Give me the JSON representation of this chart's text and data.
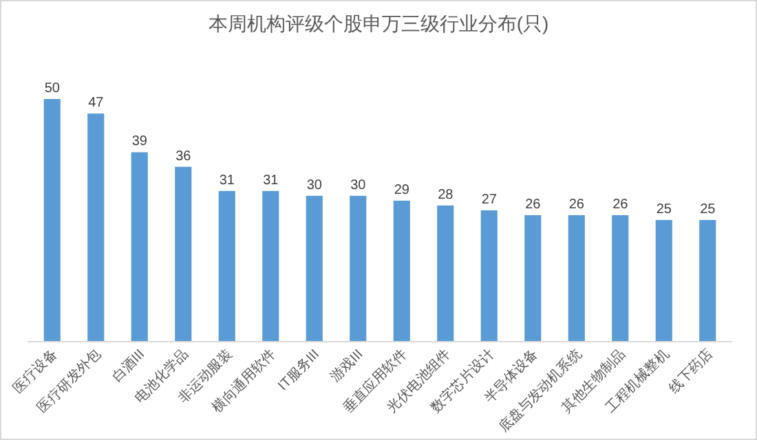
{
  "chart_data": {
    "type": "bar",
    "title": "本周机构评级个股申万三级行业分布(只)",
    "categories": [
      "医疗设备",
      "医疗研发外包",
      "白酒III",
      "电池化学品",
      "非运动服装",
      "横向通用软件",
      "IT服务III",
      "游戏III",
      "垂直应用软件",
      "光伏电池组件",
      "数字芯片设计",
      "半导体设备",
      "底盘与发动机系统",
      "其他生物制品",
      "工程机械整机",
      "线下药店"
    ],
    "values": [
      50,
      47,
      39,
      36,
      31,
      31,
      30,
      30,
      29,
      28,
      27,
      26,
      26,
      26,
      25,
      25
    ],
    "color": "#5b9bd5",
    "data_labels": true
  }
}
